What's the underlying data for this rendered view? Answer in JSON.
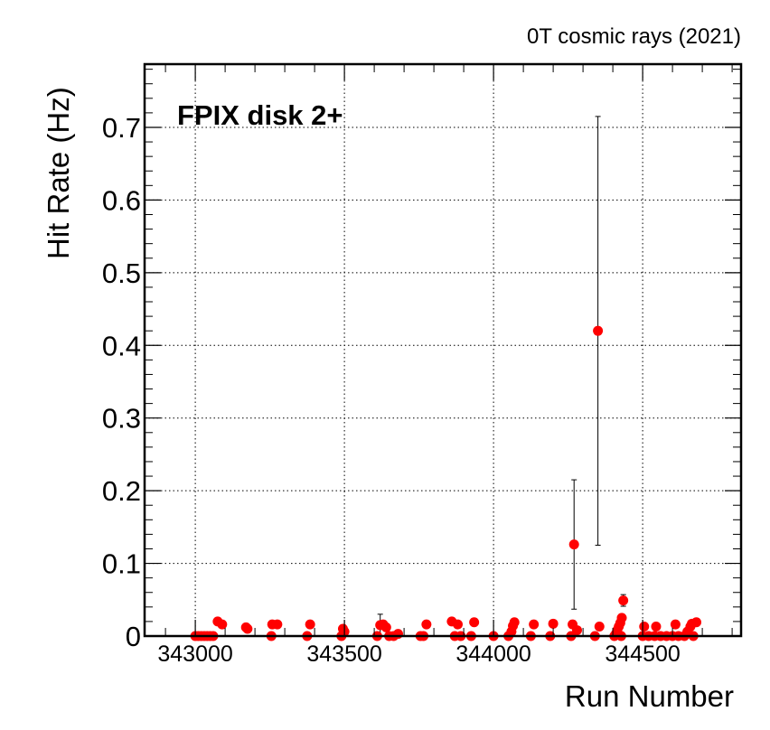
{
  "header_text": "0T cosmic rays (2021)",
  "chart_data": {
    "type": "scatter",
    "annotation": "FPIX disk 2+",
    "xlabel": "Run Number",
    "ylabel": "Hit Rate (Hz)",
    "xlim": [
      342830,
      344830
    ],
    "ylim": [
      0,
      0.787
    ],
    "x_ticks": [
      343000,
      343500,
      344000,
      344500
    ],
    "x_tick_labels": [
      "343000",
      "343500",
      "344000",
      "344500"
    ],
    "y_ticks": [
      0,
      0.1,
      0.2,
      0.3,
      0.4,
      0.5,
      0.6,
      0.7
    ],
    "y_tick_labels": [
      "0",
      "0.1",
      "0.2",
      "0.3",
      "0.4",
      "0.5",
      "0.6",
      "0.7"
    ],
    "grid": true,
    "marker_color": "#ff0000",
    "points": [
      {
        "x": 343000,
        "y": 0.0
      },
      {
        "x": 343010,
        "y": 0.0
      },
      {
        "x": 343020,
        "y": 0.0
      },
      {
        "x": 343030,
        "y": 0.0
      },
      {
        "x": 343040,
        "y": 0.0
      },
      {
        "x": 343050,
        "y": 0.0
      },
      {
        "x": 343060,
        "y": 0.0
      },
      {
        "x": 343075,
        "y": 0.02
      },
      {
        "x": 343090,
        "y": 0.016
      },
      {
        "x": 343170,
        "y": 0.012
      },
      {
        "x": 343175,
        "y": 0.01
      },
      {
        "x": 343255,
        "y": 0.0
      },
      {
        "x": 343258,
        "y": 0.016
      },
      {
        "x": 343275,
        "y": 0.016
      },
      {
        "x": 343375,
        "y": 0.0
      },
      {
        "x": 343385,
        "y": 0.016
      },
      {
        "x": 343490,
        "y": 0.0
      },
      {
        "x": 343495,
        "y": 0.01
      },
      {
        "x": 343500,
        "y": 0.006
      },
      {
        "x": 343610,
        "y": 0.0
      },
      {
        "x": 343620,
        "y": 0.015,
        "err": 0.015
      },
      {
        "x": 343630,
        "y": 0.016
      },
      {
        "x": 343640,
        "y": 0.012
      },
      {
        "x": 343650,
        "y": 0.0
      },
      {
        "x": 343665,
        "y": 0.0
      },
      {
        "x": 343680,
        "y": 0.003
      },
      {
        "x": 343755,
        "y": 0.0
      },
      {
        "x": 343765,
        "y": 0.0
      },
      {
        "x": 343775,
        "y": 0.016
      },
      {
        "x": 343860,
        "y": 0.02
      },
      {
        "x": 343870,
        "y": 0.0
      },
      {
        "x": 343880,
        "y": 0.016
      },
      {
        "x": 343890,
        "y": 0.0
      },
      {
        "x": 343925,
        "y": 0.0
      },
      {
        "x": 343935,
        "y": 0.019
      },
      {
        "x": 344000,
        "y": 0.0
      },
      {
        "x": 344050,
        "y": 0.0
      },
      {
        "x": 344060,
        "y": 0.006
      },
      {
        "x": 344065,
        "y": 0.014
      },
      {
        "x": 344070,
        "y": 0.019
      },
      {
        "x": 344125,
        "y": 0.0
      },
      {
        "x": 344135,
        "y": 0.016
      },
      {
        "x": 344190,
        "y": 0.0
      },
      {
        "x": 344200,
        "y": 0.017
      },
      {
        "x": 344260,
        "y": 0.0
      },
      {
        "x": 344265,
        "y": 0.016
      },
      {
        "x": 344270,
        "y": 0.126,
        "err": 0.089
      },
      {
        "x": 344280,
        "y": 0.008
      },
      {
        "x": 344340,
        "y": 0.0
      },
      {
        "x": 344350,
        "y": 0.42,
        "err": 0.295
      },
      {
        "x": 344355,
        "y": 0.013
      },
      {
        "x": 344405,
        "y": 0.0
      },
      {
        "x": 344410,
        "y": 0.003
      },
      {
        "x": 344415,
        "y": 0.008
      },
      {
        "x": 344420,
        "y": 0.013
      },
      {
        "x": 344425,
        "y": 0.018
      },
      {
        "x": 344428,
        "y": 0.0
      },
      {
        "x": 344430,
        "y": 0.025
      },
      {
        "x": 344435,
        "y": 0.049,
        "err": 0.008
      },
      {
        "x": 344500,
        "y": 0.0
      },
      {
        "x": 344505,
        "y": 0.013
      },
      {
        "x": 344520,
        "y": 0.0
      },
      {
        "x": 344540,
        "y": 0.0
      },
      {
        "x": 344545,
        "y": 0.013
      },
      {
        "x": 344560,
        "y": 0.0
      },
      {
        "x": 344580,
        "y": 0.0
      },
      {
        "x": 344600,
        "y": 0.0
      },
      {
        "x": 344610,
        "y": 0.016
      },
      {
        "x": 344620,
        "y": 0.0
      },
      {
        "x": 344640,
        "y": 0.0
      },
      {
        "x": 344650,
        "y": 0.006
      },
      {
        "x": 344660,
        "y": 0.013
      },
      {
        "x": 344665,
        "y": 0.017
      },
      {
        "x": 344670,
        "y": 0.0
      },
      {
        "x": 344680,
        "y": 0.019
      }
    ]
  }
}
